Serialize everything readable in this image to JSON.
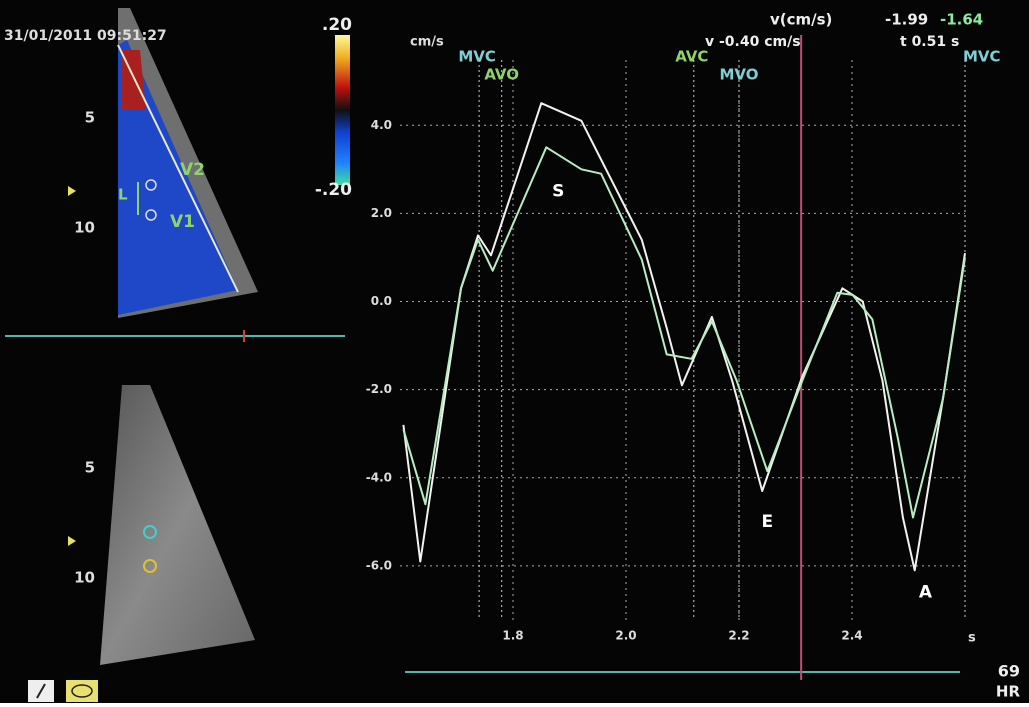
{
  "screen": {
    "timestamp": "31/01/2011 09:51:27",
    "color_scale": {
      "top": ".20",
      "bottom": "-.20"
    },
    "upper_image": {
      "depth_labels": [
        "5",
        "10"
      ],
      "markers": [
        "V2",
        "V1",
        "L"
      ]
    },
    "lower_image": {
      "depth_labels": [
        "5",
        "10"
      ]
    },
    "readout": {
      "header": "v(cm/s)",
      "v1": "-1.99",
      "v2": "-1.64",
      "cursor_v": "v -0.40 cm/s",
      "cursor_t": "t 0.51 s"
    },
    "heart_rate": {
      "value": "69",
      "label": "HR"
    }
  },
  "chart_data": {
    "type": "line",
    "y_unit": "cm/s",
    "x_unit": "s",
    "xlim": [
      1.6,
      2.6
    ],
    "ylim": [
      -7.0,
      4.8
    ],
    "xticks": [
      1.8,
      {
        "value": 2.0,
        "label": "2.0"
      },
      2.2,
      2.4
    ],
    "yticks": [
      {
        "value": 4,
        "label": "4.0"
      },
      {
        "value": 2,
        "label": "2.0"
      },
      {
        "value": 0,
        "label": "0.0"
      },
      {
        "value": -2,
        "label": "-2.0"
      },
      {
        "value": -4,
        "label": "-4.0"
      },
      {
        "value": -6,
        "label": "-6.0"
      }
    ],
    "grid": true,
    "cursor_x": 2.31,
    "series": [
      {
        "color": "#f2f2ee",
        "x": [
          1.606,
          1.636,
          1.708,
          1.738,
          1.761,
          1.85,
          1.921,
          2.028,
          2.072,
          2.099,
          2.152,
          2.188,
          2.241,
          2.312,
          2.383,
          2.419,
          2.454,
          2.49,
          2.511,
          2.561,
          2.6
        ],
        "values": [
          -2.8,
          -5.9,
          0.3,
          1.5,
          1.05,
          4.5,
          4.1,
          1.4,
          -0.6,
          -1.9,
          -0.35,
          -1.8,
          -4.3,
          -1.7,
          0.3,
          0.0,
          -1.8,
          -4.9,
          -6.1,
          -2.2,
          1.1
        ]
      },
      {
        "color": "#b8ecc4",
        "x": [
          1.606,
          1.645,
          1.708,
          1.738,
          1.764,
          1.859,
          1.921,
          1.956,
          2.028,
          2.072,
          2.116,
          2.152,
          2.196,
          2.25,
          2.312,
          2.374,
          2.401,
          2.436,
          2.481,
          2.508,
          2.561,
          2.6
        ],
        "values": [
          -2.9,
          -4.6,
          0.3,
          1.4,
          0.7,
          3.5,
          3.0,
          2.9,
          0.95,
          -1.2,
          -1.3,
          -0.45,
          -1.8,
          -3.85,
          -1.8,
          0.2,
          0.15,
          -0.4,
          -3.1,
          -4.9,
          -2.2,
          1.0
        ]
      }
    ],
    "events": [
      {
        "label": "MVC",
        "x": 1.74,
        "color": "#7fcfd6"
      },
      {
        "label": "AVO",
        "x": 1.78,
        "color": "#8fd46a"
      },
      {
        "label": "AVC",
        "x": 2.12,
        "color": "#8fd46a"
      },
      {
        "label": "MVO",
        "x": 2.2,
        "color": "#7fcfd6"
      },
      {
        "label": "MVC",
        "x": 2.6,
        "color": "#7fcfd6"
      }
    ],
    "annotations": [
      {
        "text": "S",
        "x": 1.88,
        "y": 2.5
      },
      {
        "text": "E",
        "x": 2.25,
        "y": -5.0
      },
      {
        "text": "A",
        "x": 2.53,
        "y": -6.6
      }
    ]
  }
}
